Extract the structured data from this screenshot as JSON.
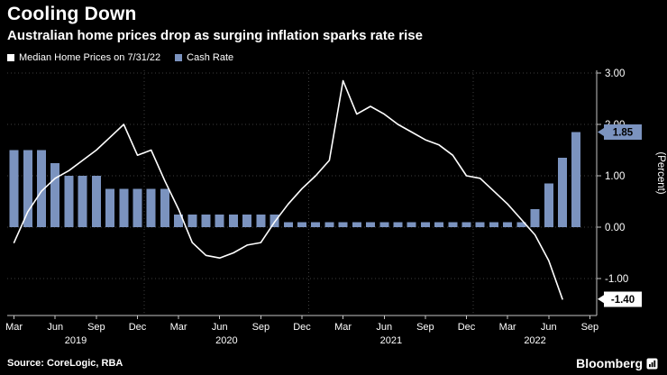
{
  "header": {
    "title": "Cooling Down",
    "subtitle": "Australian home prices drop as surging inflation sparks rate rise"
  },
  "legend": [
    {
      "label": "Median Home Prices on 7/31/22",
      "color": "#ffffff"
    },
    {
      "label": "Cash Rate",
      "color": "#7b93bf"
    }
  ],
  "footer": {
    "source": "Source: CoreLogic, RBA",
    "brand": "Bloomberg"
  },
  "colors": {
    "background": "#000000",
    "text": "#ffffff",
    "grid": "#3e3e3e",
    "axis": "#c4c4c4",
    "bar": "#7b93bf",
    "line": "#ffffff"
  },
  "chart_data": {
    "type": "mixed",
    "title": "Cooling Down",
    "subtitle": "Australian home prices drop as surging inflation sparks rate rise",
    "ylabel": "(Percent)",
    "ylim": [
      -1.7,
      3.45
    ],
    "grid": "dotted horizontal at whole percents, dotted vertical at year starts",
    "legend_position": "top-left",
    "x": [
      "2019-03",
      "2019-04",
      "2019-05",
      "2019-06",
      "2019-07",
      "2019-08",
      "2019-09",
      "2019-10",
      "2019-11",
      "2019-12",
      "2020-01",
      "2020-02",
      "2020-03",
      "2020-04",
      "2020-05",
      "2020-06",
      "2020-07",
      "2020-08",
      "2020-09",
      "2020-10",
      "2020-11",
      "2020-12",
      "2021-01",
      "2021-02",
      "2021-03",
      "2021-04",
      "2021-05",
      "2021-06",
      "2021-07",
      "2021-08",
      "2021-09",
      "2021-10",
      "2021-11",
      "2021-12",
      "2022-01",
      "2022-02",
      "2022-03",
      "2022-04",
      "2022-05",
      "2022-06",
      "2022-07",
      "2022-08",
      "2022-09"
    ],
    "series": [
      {
        "name": "Median Home Prices on 7/31/22",
        "type": "line",
        "color": "#ffffff",
        "values": [
          -0.3,
          0.3,
          0.7,
          0.95,
          1.1,
          1.3,
          1.5,
          1.75,
          2.0,
          1.4,
          1.5,
          0.9,
          0.35,
          -0.3,
          -0.55,
          -0.6,
          -0.5,
          -0.35,
          -0.3,
          0.1,
          0.45,
          0.75,
          1.0,
          1.3,
          2.85,
          2.2,
          2.35,
          2.2,
          2.0,
          1.85,
          1.7,
          1.6,
          1.4,
          1.0,
          0.95,
          0.7,
          0.45,
          0.15,
          -0.15,
          -0.65,
          -1.4,
          null,
          null
        ]
      },
      {
        "name": "Cash Rate",
        "type": "bar",
        "color": "#7b93bf",
        "values": [
          1.5,
          1.5,
          1.5,
          1.25,
          1.0,
          1.0,
          1.0,
          0.75,
          0.75,
          0.75,
          0.75,
          0.75,
          0.25,
          0.25,
          0.25,
          0.25,
          0.25,
          0.25,
          0.25,
          0.25,
          0.1,
          0.1,
          0.1,
          0.1,
          0.1,
          0.1,
          0.1,
          0.1,
          0.1,
          0.1,
          0.1,
          0.1,
          0.1,
          0.1,
          0.1,
          0.1,
          0.1,
          0.1,
          0.35,
          0.85,
          1.35,
          1.85,
          null
        ]
      }
    ],
    "yticks": [
      {
        "v": 3,
        "label": "3.00"
      },
      {
        "v": 2,
        "label": "2.00"
      },
      {
        "v": 1,
        "label": "1.00"
      },
      {
        "v": 0,
        "label": "0.00"
      },
      {
        "v": -1,
        "label": "-1.00"
      }
    ],
    "x_ticks": [
      {
        "i": 0,
        "label": "Mar"
      },
      {
        "i": 3,
        "label": "Jun"
      },
      {
        "i": 6,
        "label": "Sep"
      },
      {
        "i": 9,
        "label": "Dec"
      },
      {
        "i": 12,
        "label": "Mar"
      },
      {
        "i": 15,
        "label": "Jun"
      },
      {
        "i": 18,
        "label": "Sep"
      },
      {
        "i": 21,
        "label": "Dec"
      },
      {
        "i": 24,
        "label": "Mar"
      },
      {
        "i": 27,
        "label": "Jun"
      },
      {
        "i": 30,
        "label": "Sep"
      },
      {
        "i": 33,
        "label": "Dec"
      },
      {
        "i": 36,
        "label": "Mar"
      },
      {
        "i": 39,
        "label": "Jun"
      },
      {
        "i": 42,
        "label": "Sep"
      }
    ],
    "year_labels": [
      "2019",
      "2020",
      "2021",
      "2022"
    ],
    "end_value_labels": [
      {
        "text": "1.85",
        "value": 1.85,
        "bg": "#7b93bf",
        "fg": "#000000"
      },
      {
        "text": "-1.40",
        "value": -1.4,
        "bg": "#ffffff",
        "fg": "#000000"
      }
    ]
  }
}
